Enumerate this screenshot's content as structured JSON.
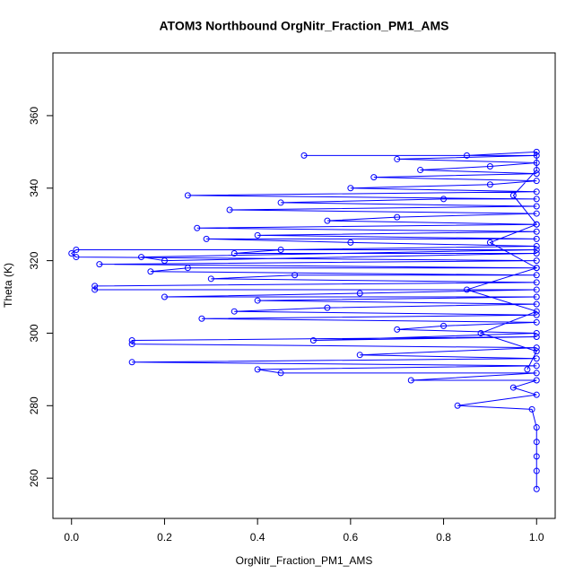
{
  "chart_data": {
    "type": "line",
    "title": "ATOM3 Northbound OrgNitr_Fraction_PM1_AMS",
    "xlabel": "OrgNitr_Fraction_PM1_AMS",
    "ylabel": "Theta (K)",
    "color": "#0000ff",
    "markers": true,
    "xlim": [
      -0.04,
      1.04
    ],
    "ylim": [
      248.9,
      377.3
    ],
    "xticks": [
      {
        "value": 0,
        "label": "0.0"
      },
      0.2,
      0.4,
      0.6,
      0.8,
      {
        "value": 1,
        "label": "1.0"
      }
    ],
    "yticks": [
      260,
      280,
      300,
      320,
      340,
      360
    ],
    "x": [
      1,
      1,
      1,
      1,
      1,
      0.99,
      0.83,
      1,
      0.95,
      1,
      0.73,
      1,
      0.45,
      0.4,
      1,
      0.13,
      1,
      0.62,
      1,
      0.13,
      0.13,
      1,
      0.52,
      1,
      0.7,
      0.8,
      1,
      0.28,
      1,
      0.35,
      0.55,
      1,
      0.4,
      1,
      0.2,
      0.62,
      1,
      0.05,
      0.05,
      1,
      0.3,
      0.48,
      1,
      0.17,
      0.25,
      1,
      0.06,
      1,
      0.01,
      0,
      0.01,
      1,
      0.15,
      0.2,
      1,
      0.35,
      0.45,
      1,
      0.6,
      0.29,
      1,
      0.4,
      1,
      0.27,
      1,
      0.55,
      0.7,
      1,
      0.34,
      1,
      0.45,
      0.8,
      1,
      0.25,
      1,
      0.6,
      0.9,
      1,
      0.65,
      1,
      0.75,
      0.9,
      1,
      0.7,
      1,
      0.5,
      0.85,
      1,
      1,
      0.95,
      1,
      0.9,
      1,
      0.85,
      1,
      0.88,
      1,
      0.98
    ],
    "y": [
      257,
      262,
      266,
      270,
      274,
      279,
      280,
      283,
      285,
      287,
      287,
      289,
      289,
      290,
      291,
      292,
      293,
      294,
      296,
      297,
      298,
      299,
      298,
      300,
      301,
      302,
      303,
      304,
      305,
      306,
      307,
      308,
      309,
      310,
      310,
      311,
      312,
      312,
      313,
      314,
      315,
      316,
      316,
      317,
      318,
      318,
      319,
      320,
      321,
      322,
      323,
      323,
      321,
      320,
      322,
      322,
      323,
      324,
      325,
      326,
      326,
      327,
      328,
      329,
      330,
      331,
      332,
      333,
      334,
      335,
      336,
      337,
      337,
      338,
      339,
      340,
      341,
      342,
      343,
      344,
      345,
      346,
      347,
      348,
      349,
      349,
      349,
      350,
      345,
      338,
      330,
      325,
      318,
      312,
      306,
      300,
      295,
      290
    ]
  }
}
